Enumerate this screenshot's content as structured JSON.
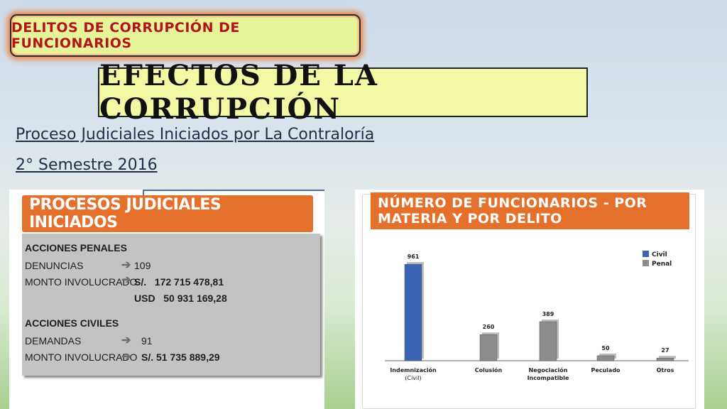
{
  "header": {
    "badge": "Delitos de corrupción de funcionarios",
    "title": "EFECTOS DE LA CORRUPCIÓN",
    "subtitle1": "Proceso Judiciales Iniciados por La Contraloría",
    "subtitle2": "2° Semestre 2016"
  },
  "left_panel": {
    "title": "PROCESOS JUDICIALES INICIADOS",
    "penal_heading": "ACCIONES PENALES",
    "denuncias_label": "DENUNCIAS",
    "denuncias_value": "109",
    "monto_label": "MONTO INVOLUCRADO",
    "monto_soles": "S/.   172 715 478,81",
    "monto_usd": "USD   50 931 169,28",
    "civil_heading": "ACCIONES CIVILES",
    "demandas_label": "DEMANDAS",
    "demandas_value": "91",
    "monto_civil_label": "MONTO INVOLUCRADO",
    "monto_civil_value": "S/. 51 735 889,29"
  },
  "right_panel": {
    "title_line1": "NÚMERO DE FUNCIONARIOS - POR",
    "title_line2": "MATERIA Y  POR DELITO"
  },
  "chart_data": {
    "type": "bar",
    "categories": [
      "Indemnización",
      "Colusión",
      "Negociación Incompatible",
      "Peculado",
      "Otros"
    ],
    "category_sublabels": [
      "(Civil)",
      "",
      "",
      "",
      ""
    ],
    "series": [
      {
        "name": "Civil",
        "color": "#3c64b4",
        "values": [
          961,
          null,
          null,
          null,
          null
        ]
      },
      {
        "name": "Penal",
        "color": "#8c8c8c",
        "values": [
          null,
          260,
          389,
          50,
          27
        ]
      }
    ],
    "data_labels": [
      "961",
      "260",
      "389",
      "50",
      "27"
    ],
    "ylim": [
      0,
      1000
    ],
    "legend": "top-right",
    "grid": false
  }
}
